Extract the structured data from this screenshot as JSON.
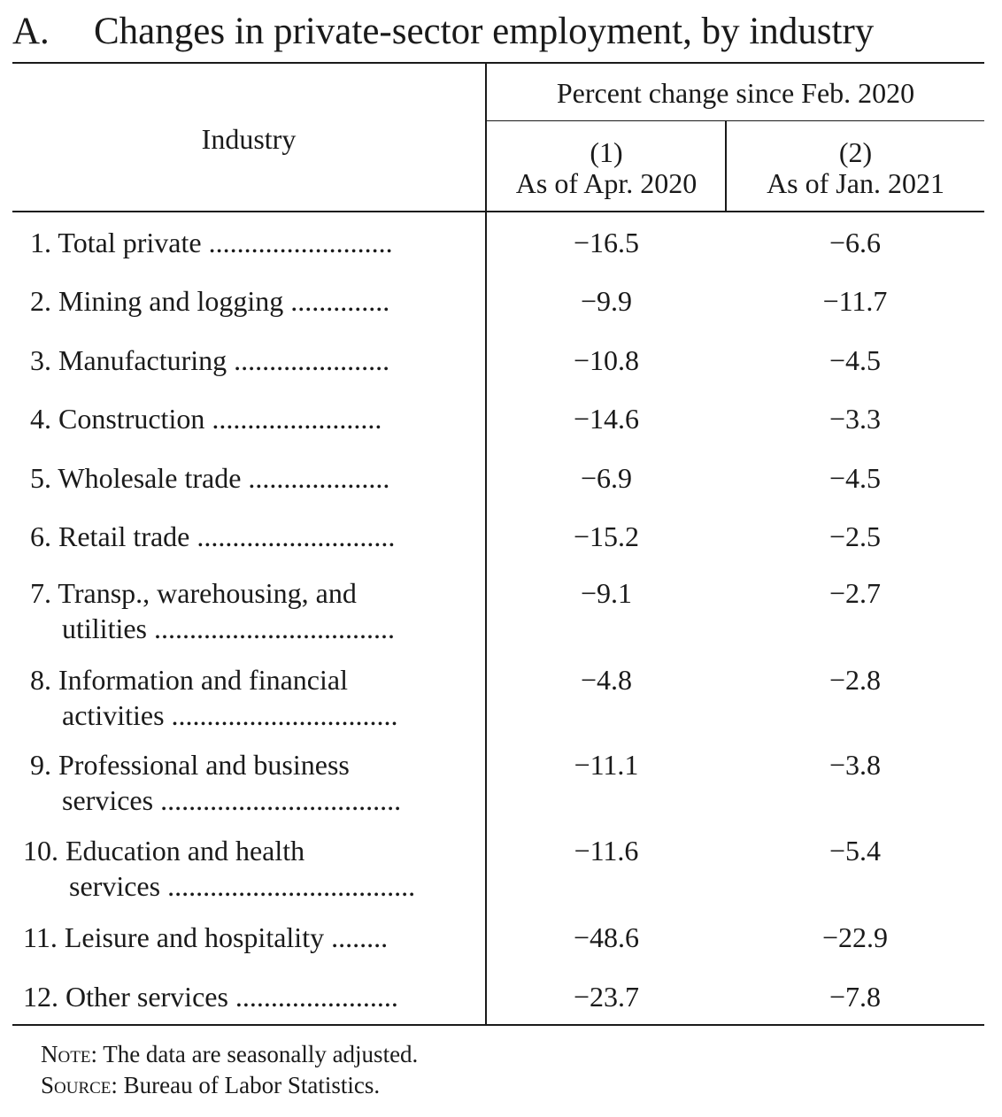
{
  "table": {
    "letter": "A.",
    "title": "Changes in private-sector employment, by industry",
    "header": {
      "industry": "Industry",
      "group": "Percent change since Feb. 2020",
      "col1_num": "(1)",
      "col1_label": "As of Apr. 2020",
      "col2_num": "(2)",
      "col2_label": "As of Jan. 2021"
    },
    "rows": [
      {
        "num": "1.",
        "line1": "Total private",
        "line2": "",
        "dots": "..........................",
        "apr2020": "−16.5",
        "jan2021": "−6.6"
      },
      {
        "num": "2.",
        "line1": "Mining and logging",
        "line2": "",
        "dots": "..............",
        "apr2020": "−9.9",
        "jan2021": "−11.7"
      },
      {
        "num": "3.",
        "line1": "Manufacturing",
        "line2": "",
        "dots": "......................",
        "apr2020": "−10.8",
        "jan2021": "−4.5"
      },
      {
        "num": "4.",
        "line1": "Construction",
        "line2": "",
        "dots": "........................",
        "apr2020": "−14.6",
        "jan2021": "−3.3"
      },
      {
        "num": "5.",
        "line1": "Wholesale trade",
        "line2": "",
        "dots": "....................",
        "apr2020": "−6.9",
        "jan2021": "−4.5"
      },
      {
        "num": "6.",
        "line1": "Retail trade",
        "line2": "",
        "dots": "............................",
        "apr2020": "−15.2",
        "jan2021": "−2.5"
      },
      {
        "num": "7.",
        "line1": "Transp., warehousing, and",
        "line2": "utilities",
        "dots": "..................................",
        "apr2020": "−9.1",
        "jan2021": "−2.7"
      },
      {
        "num": "8.",
        "line1": "Information and financial",
        "line2": "activities",
        "dots": "................................",
        "apr2020": "−4.8",
        "jan2021": "−2.8"
      },
      {
        "num": "9.",
        "line1": "Professional and business",
        "line2": "services",
        "dots": "..................................",
        "apr2020": "−11.1",
        "jan2021": "−3.8"
      },
      {
        "num": "10.",
        "line1": "Education and health",
        "line2": "services",
        "dots": "...................................",
        "apr2020": "−11.6",
        "jan2021": "−5.4"
      },
      {
        "num": "11.",
        "line1": "Leisure and hospitality",
        "line2": "",
        "dots": "........",
        "apr2020": "−48.6",
        "jan2021": "−22.9"
      },
      {
        "num": "12.",
        "line1": "Other services",
        "line2": "",
        "dots": ".......................",
        "apr2020": "−23.7",
        "jan2021": "−7.8"
      }
    ],
    "note_label": "Note",
    "note_text": ": The data are seasonally adjusted.",
    "source_label": "Source",
    "source_text": ": Bureau of Labor Statistics."
  }
}
